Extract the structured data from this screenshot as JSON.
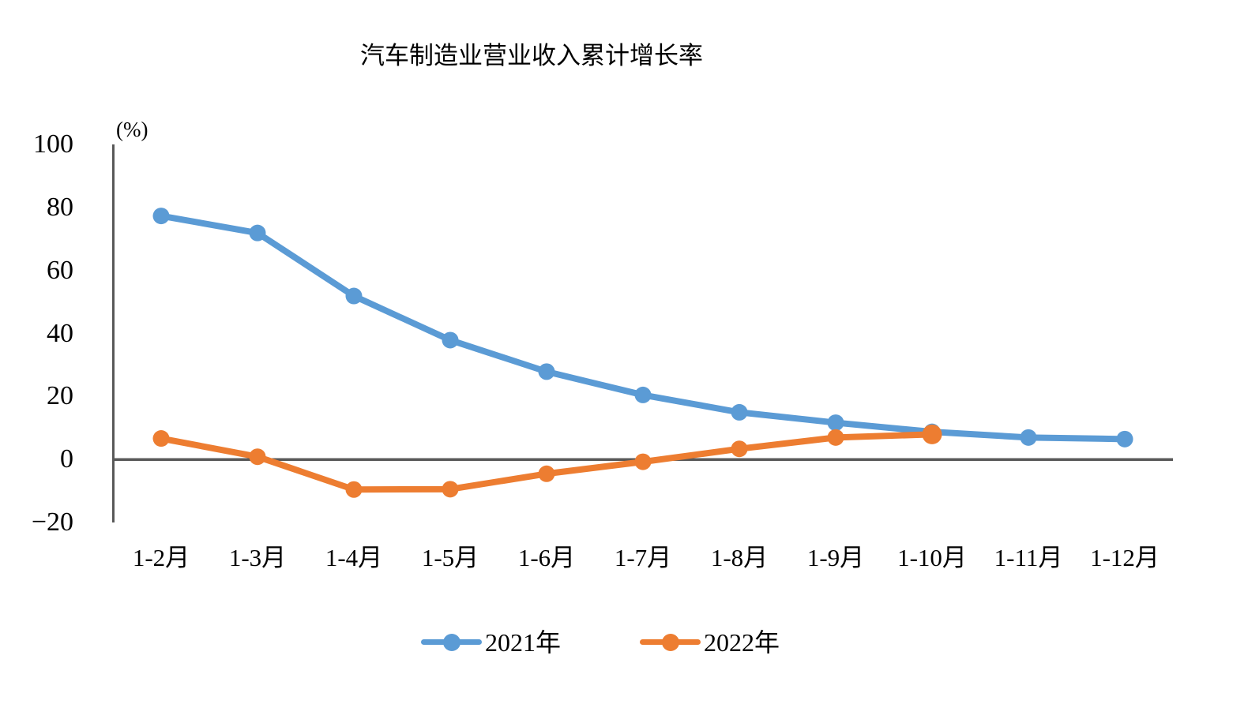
{
  "chart": {
    "title": "汽车制造业营业收入累计增长率"
  },
  "chart_data": {
    "type": "line",
    "title": "汽车制造业营业收入累计增长率",
    "unit_label": "(%)",
    "categories": [
      "1-2月",
      "1-3月",
      "1-4月",
      "1-5月",
      "1-6月",
      "1-7月",
      "1-8月",
      "1-9月",
      "1-10月",
      "1-11月",
      "1-12月"
    ],
    "series": [
      {
        "name": "2021年",
        "color": "#5B9BD5",
        "values": [
          77.3,
          71.9,
          51.9,
          37.9,
          27.9,
          20.5,
          15.0,
          11.7,
          8.8,
          7.0,
          6.5
        ]
      },
      {
        "name": "2022年",
        "color": "#ED7D31",
        "values": [
          6.7,
          0.9,
          -9.5,
          -9.4,
          -4.5,
          -0.7,
          3.4,
          7.0,
          8.0
        ]
      }
    ],
    "y_ticks": [
      100,
      80,
      60,
      40,
      20,
      0,
      -20
    ],
    "y_tick_labels": [
      "100",
      "80",
      "60",
      "40",
      "20",
      "0",
      "−20"
    ],
    "ylim": [
      -20,
      100
    ],
    "xlabel": "",
    "ylabel": "",
    "grid": false,
    "zero_baseline": true,
    "legend_position": "bottom",
    "axis_color": "#595959",
    "text_color": "#000000",
    "background_color": "#FFFFFF"
  }
}
